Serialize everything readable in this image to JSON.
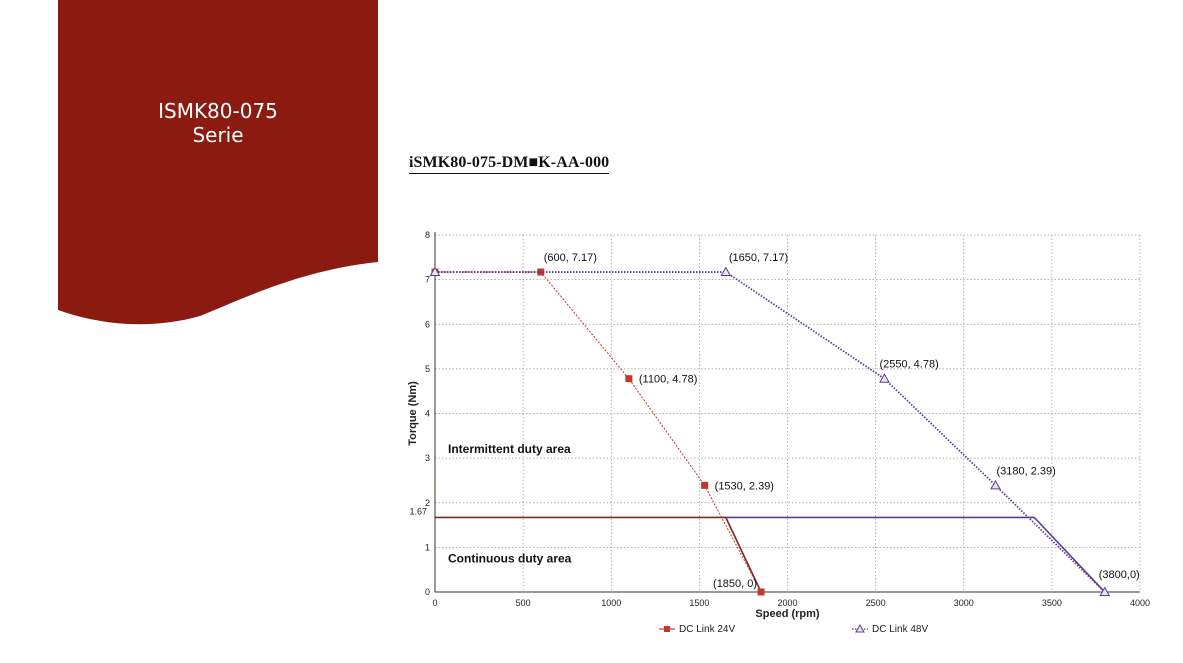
{
  "banner": {
    "line1": "ISMK80-075",
    "line2": "Serie",
    "color": "#8b1a10"
  },
  "doc_title": "iSMK80-075-DM■K-AA-000",
  "chart_data": {
    "type": "line",
    "xlabel": "Speed (rpm)",
    "ylabel": "Torque (Nm)",
    "xlim": [
      0,
      4000
    ],
    "ylim": [
      0,
      8
    ],
    "xticks": [
      0,
      500,
      1000,
      1500,
      2000,
      2500,
      3000,
      3500,
      4000
    ],
    "yticks": [
      0,
      1,
      2,
      3,
      4,
      5,
      6,
      7,
      8
    ],
    "grid": true,
    "legend_position": "bottom",
    "series": [
      {
        "name": "DC Link 24V",
        "color": "#c0392b",
        "marker": "square",
        "x": [
          0,
          600,
          1100,
          1530,
          1850
        ],
        "y": [
          7.17,
          7.17,
          4.78,
          2.39,
          0
        ],
        "labels": [
          "",
          "(600,  7.17)",
          "(1100,  4.78)",
          "(1530,  2.39)",
          "(1850,  0)"
        ]
      },
      {
        "name": "DC Link 48V",
        "color": "#5b3f8f",
        "marker": "triangle",
        "x": [
          0,
          1650,
          2550,
          3180,
          3800
        ],
        "y": [
          7.17,
          7.17,
          4.78,
          2.39,
          0
        ],
        "labels": [
          "",
          "(1650,  7.17)",
          "(2550,  4.78)",
          "(3180,  2.39)",
          "(3800,0)"
        ]
      }
    ],
    "continuous_limit": {
      "label": "1.67",
      "y": 1.67,
      "line24": {
        "x": [
          0,
          1650,
          1850
        ],
        "y": [
          1.67,
          1.67,
          0
        ]
      },
      "line48": {
        "x": [
          1650,
          3400,
          3800
        ],
        "y": [
          1.67,
          1.67,
          0
        ]
      }
    },
    "areas": [
      {
        "text": "Intermittent duty area",
        "x": 70,
        "y": 3.2
      },
      {
        "text": "Continuous duty area",
        "x": 70,
        "y": 0.75
      }
    ]
  }
}
